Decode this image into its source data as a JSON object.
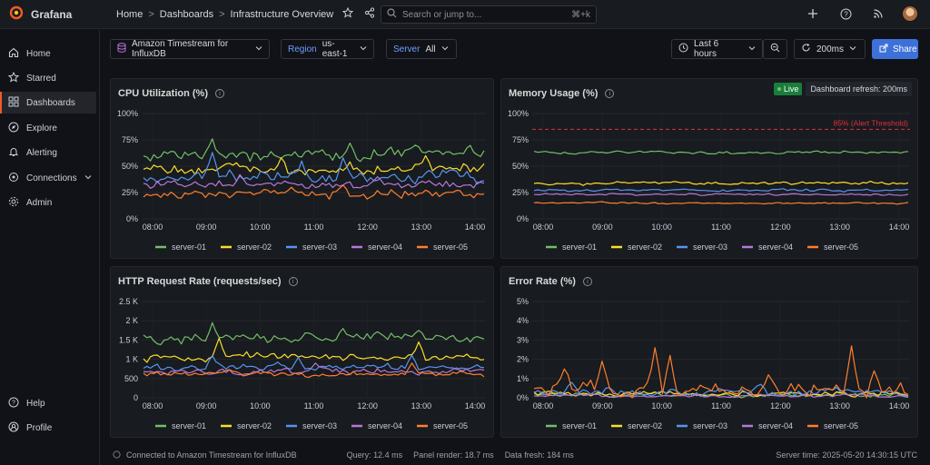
{
  "app": {
    "name": "Grafana"
  },
  "breadcrumb": {
    "home": "Home",
    "dashboards": "Dashboards",
    "current": "Infrastructure Overview",
    "sep": ">"
  },
  "search": {
    "placeholder": "Search or jump to...",
    "shortcut": "⌘+k"
  },
  "sidebar": {
    "items": [
      {
        "label": "Home",
        "icon": "home-icon"
      },
      {
        "label": "Starred",
        "icon": "star-icon"
      },
      {
        "label": "Dashboards",
        "icon": "grid-icon",
        "active": true
      },
      {
        "label": "Explore",
        "icon": "compass-icon"
      },
      {
        "label": "Alerting",
        "icon": "bell-icon"
      },
      {
        "label": "Connections",
        "icon": "plug-icon"
      },
      {
        "label": "Admin",
        "icon": "gear-icon"
      }
    ],
    "bottom": [
      {
        "label": "Help",
        "icon": "help-icon"
      },
      {
        "label": "Profile",
        "icon": "user-icon"
      }
    ]
  },
  "variables": {
    "datasource": "Amazon Timestream for InfluxDB",
    "region_label": "Region",
    "region_value": "us-east-1",
    "server_label": "Server",
    "server_value": "All"
  },
  "time_controls": {
    "range": "Last 6 hours",
    "refresh": "200ms",
    "share": "Share"
  },
  "live": {
    "badge": "Live",
    "text": "Dashboard refresh: 200ms"
  },
  "colors": {
    "server-01": "#73bf69",
    "server-02": "#fade2a",
    "server-03": "#5794f2",
    "server-04": "#b877d9",
    "server-05": "#ff7f2f",
    "threshold": "#e02f44"
  },
  "panels": {
    "cpu": {
      "title": "CPU Utilization (%)",
      "chart_data": {
        "type": "line",
        "x": [
          "08:00",
          "09:00",
          "10:00",
          "11:00",
          "12:00",
          "13:00",
          "14:00"
        ],
        "yticks": [
          "0%",
          "25%",
          "50%",
          "75%",
          "100%"
        ],
        "ylim": [
          0,
          100
        ],
        "series": [
          {
            "name": "server-01",
            "base": 62,
            "noise": 6,
            "spikes": [
              [
                20,
                76
              ],
              [
                60,
                72
              ],
              [
                79,
                70
              ]
            ]
          },
          {
            "name": "server-02",
            "base": 48,
            "noise": 5,
            "spikes": [
              [
                40,
                58
              ],
              [
                82,
                60
              ]
            ]
          },
          {
            "name": "server-03",
            "base": 39,
            "noise": 6,
            "spikes": [
              [
                20,
                63
              ],
              [
                46,
                55
              ],
              [
                58,
                58
              ]
            ]
          },
          {
            "name": "server-04",
            "base": 33,
            "noise": 4,
            "spikes": [
              [
                28,
                42
              ],
              [
                68,
                40
              ]
            ]
          },
          {
            "name": "server-05",
            "base": 24,
            "noise": 4,
            "spikes": [
              [
                43,
                30
              ],
              [
                58,
                32
              ]
            ]
          }
        ]
      }
    },
    "memory": {
      "title": "Memory Usage (%)",
      "threshold_label": "85% (Alert Threshold)",
      "chart_data": {
        "type": "line",
        "x": [
          "08:00",
          "09:00",
          "10:00",
          "11:00",
          "12:00",
          "13:00",
          "14:00"
        ],
        "yticks": [
          "0%",
          "25%",
          "50%",
          "75%",
          "100%"
        ],
        "ylim": [
          0,
          100
        ],
        "threshold": 85,
        "series": [
          {
            "name": "server-01",
            "base": 63,
            "noise": 1.5,
            "spikes": []
          },
          {
            "name": "server-02",
            "base": 34,
            "noise": 1.5,
            "spikes": []
          },
          {
            "name": "server-03",
            "base": 27,
            "noise": 1.2,
            "spikes": []
          },
          {
            "name": "server-04",
            "base": 23,
            "noise": 1.0,
            "spikes": []
          },
          {
            "name": "server-05",
            "base": 15,
            "noise": 1.0,
            "spikes": []
          }
        ]
      }
    },
    "http": {
      "title": "HTTP Request Rate (requests/sec)",
      "chart_data": {
        "type": "line",
        "x": [
          "08:00",
          "09:00",
          "10:00",
          "11:00",
          "12:00",
          "13:00",
          "14:00"
        ],
        "yticks": [
          "0",
          "500",
          "1 K",
          "1.5 K",
          "2 K",
          "2.5 K"
        ],
        "ylim": [
          0,
          2500
        ],
        "series": [
          {
            "name": "server-01",
            "base": 1550,
            "noise": 120,
            "spikes": [
              [
                20,
                1950
              ],
              [
                58,
                1800
              ],
              [
                80,
                1750
              ]
            ]
          },
          {
            "name": "server-02",
            "base": 1050,
            "noise": 110,
            "spikes": [
              [
                22,
                1550
              ],
              [
                80,
                1450
              ]
            ]
          },
          {
            "name": "server-03",
            "base": 780,
            "noise": 90,
            "spikes": [
              [
                20,
                1100
              ],
              [
                45,
                1050
              ],
              [
                78,
                1100
              ]
            ]
          },
          {
            "name": "server-04",
            "base": 680,
            "noise": 80,
            "spikes": [
              [
                50,
                900
              ]
            ]
          },
          {
            "name": "server-05",
            "base": 620,
            "noise": 70,
            "spikes": [
              [
                78,
                900
              ]
            ]
          }
        ]
      }
    },
    "error": {
      "title": "Error Rate (%)",
      "chart_data": {
        "type": "line",
        "x": [
          "08:00",
          "09:00",
          "10:00",
          "11:00",
          "12:00",
          "13:00",
          "14:00"
        ],
        "yticks": [
          "0%",
          "1%",
          "2%",
          "3%",
          "4%",
          "5%"
        ],
        "ylim": [
          0,
          5
        ],
        "series": [
          {
            "name": "server-01",
            "base": 0.15,
            "noise": 0.12,
            "spikes": []
          },
          {
            "name": "server-02",
            "base": 0.2,
            "noise": 0.15,
            "spikes": []
          },
          {
            "name": "server-03",
            "base": 0.3,
            "noise": 0.2,
            "spikes": [
              [
                10,
                0.8
              ],
              [
                60,
                0.7
              ]
            ]
          },
          {
            "name": "server-04",
            "base": 0.1,
            "noise": 0.08,
            "spikes": []
          },
          {
            "name": "server-05",
            "base": 0.4,
            "noise": 0.45,
            "spikes": [
              [
                8,
                1.5
              ],
              [
                18,
                1.9
              ],
              [
                32,
                2.6
              ],
              [
                36,
                2.2
              ],
              [
                62,
                1.2
              ],
              [
                84,
                2.7
              ],
              [
                90,
                1.4
              ]
            ]
          }
        ]
      }
    }
  },
  "footer": {
    "status": "Connected to Amazon Timestream for InfluxDB",
    "query": "Query: 12.4 ms",
    "render": "Panel render: 18.7 ms",
    "fresh": "Data fresh: 184 ms",
    "server_time": "Server time: 2025-05-20 14:30:15 UTC"
  }
}
